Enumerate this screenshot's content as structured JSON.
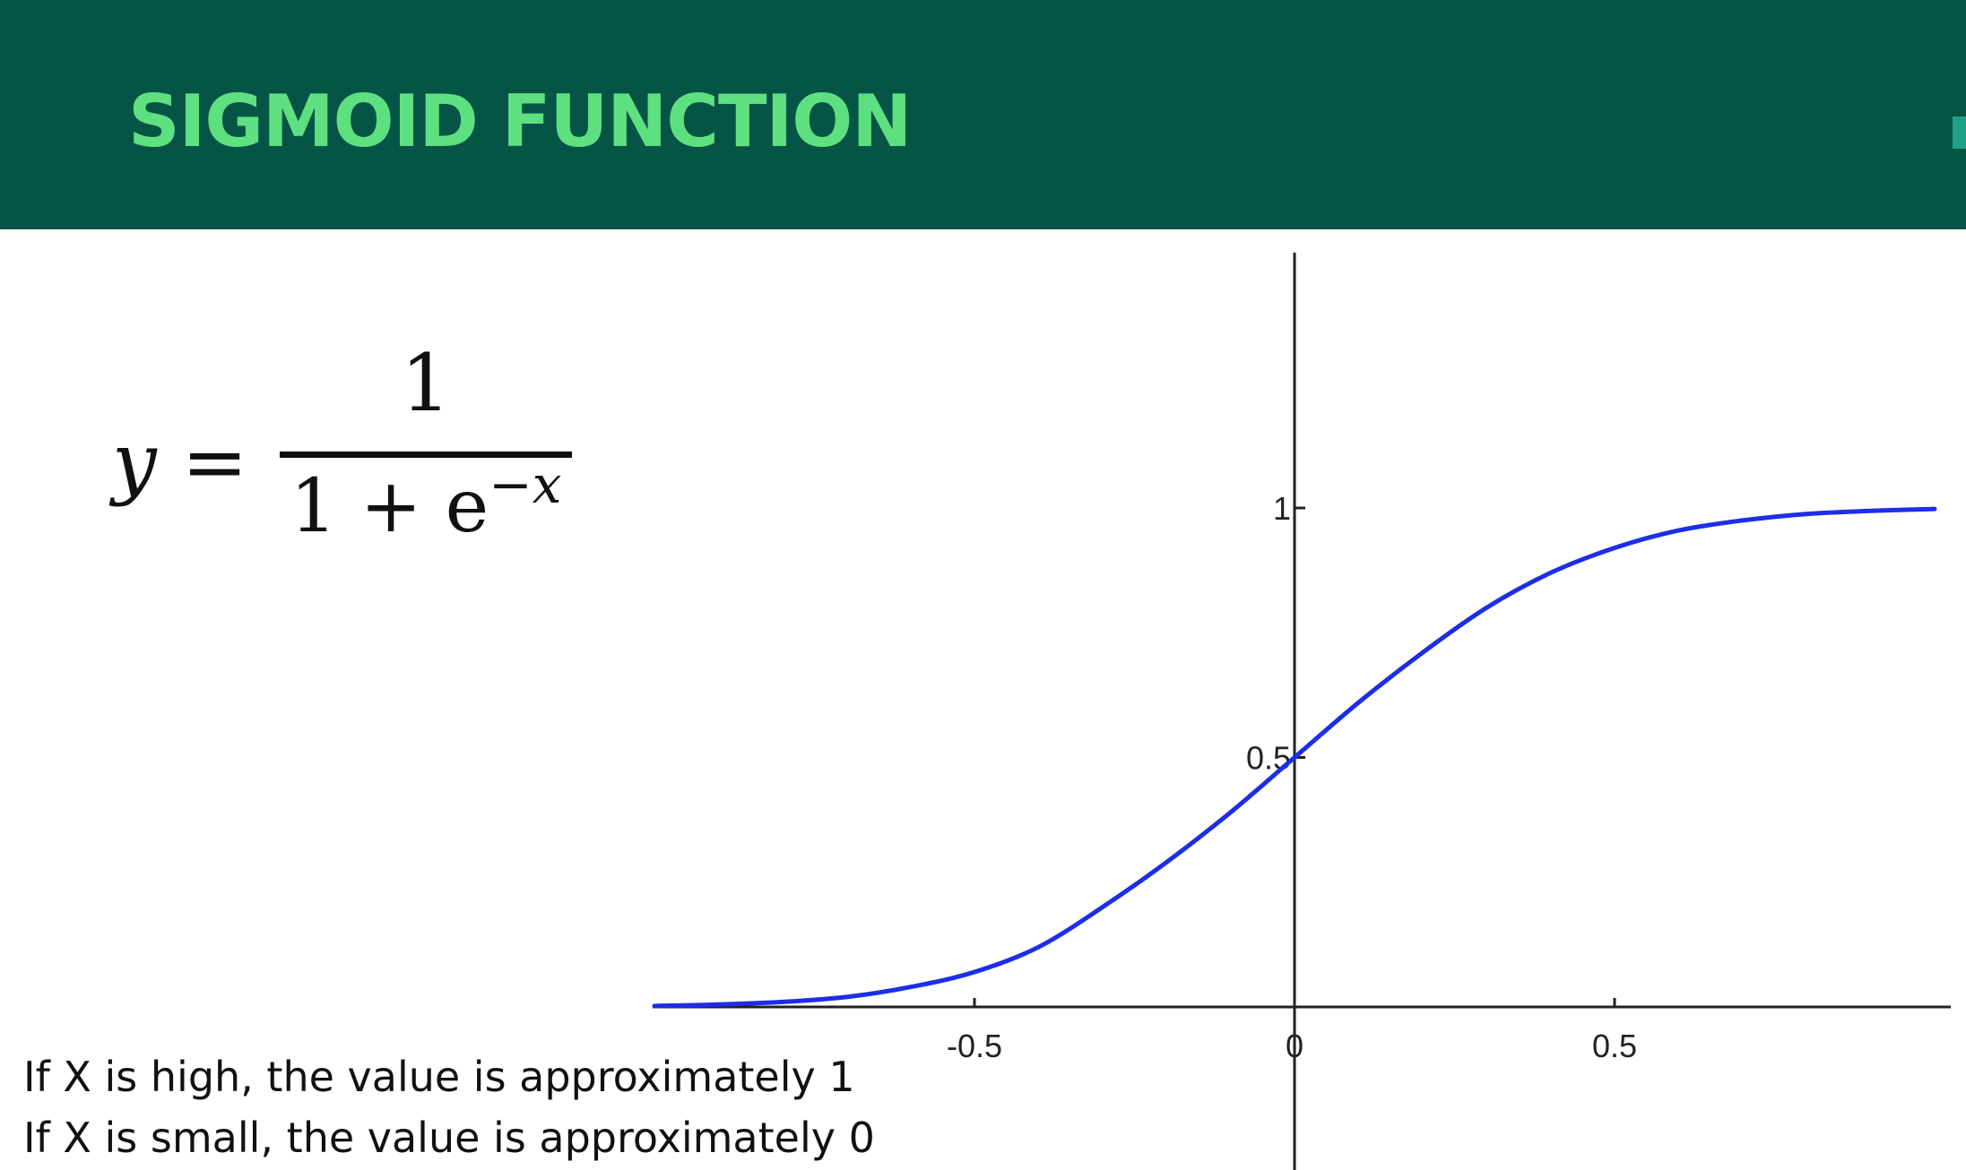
{
  "title": "SIGMOID FUNCTION",
  "formula": {
    "lhs": "y",
    "equals": "=",
    "numerator": "1",
    "denominator_base": "1 + e",
    "denominator_exponent": "−x"
  },
  "notes": [
    "If X is high, the value is approximately 1",
    "If X is small, the value is approximately 0"
  ],
  "colors": {
    "header_bg": "#045546",
    "title": "#5fe080",
    "curve": "#1c2ee8"
  },
  "chart_data": {
    "type": "line",
    "title": "",
    "xlabel": "",
    "ylabel": "",
    "xlim": [
      -1.0,
      1.0
    ],
    "ylim": [
      -0.25,
      1.5
    ],
    "x_ticks": [
      -0.5,
      0,
      0.5
    ],
    "x_tick_labels": [
      "-0.5",
      "0",
      "0.5"
    ],
    "y_ticks": [
      0.5,
      1
    ],
    "y_tick_labels": [
      "0.5",
      "1"
    ],
    "grid": false,
    "legend": "none",
    "series": [
      {
        "x": [
          -1.0,
          -0.9,
          -0.8,
          -0.7,
          -0.6,
          -0.5,
          -0.4,
          -0.3,
          -0.2,
          -0.1,
          0.0,
          0.1,
          0.2,
          0.3,
          0.4,
          0.5,
          0.6,
          0.7,
          0.8,
          0.9,
          1.0
        ],
        "y": [
          0.002,
          0.005,
          0.01,
          0.02,
          0.04,
          0.07,
          0.12,
          0.2,
          0.29,
          0.39,
          0.5,
          0.61,
          0.71,
          0.8,
          0.87,
          0.92,
          0.955,
          0.975,
          0.988,
          0.994,
          0.998
        ]
      }
    ]
  }
}
